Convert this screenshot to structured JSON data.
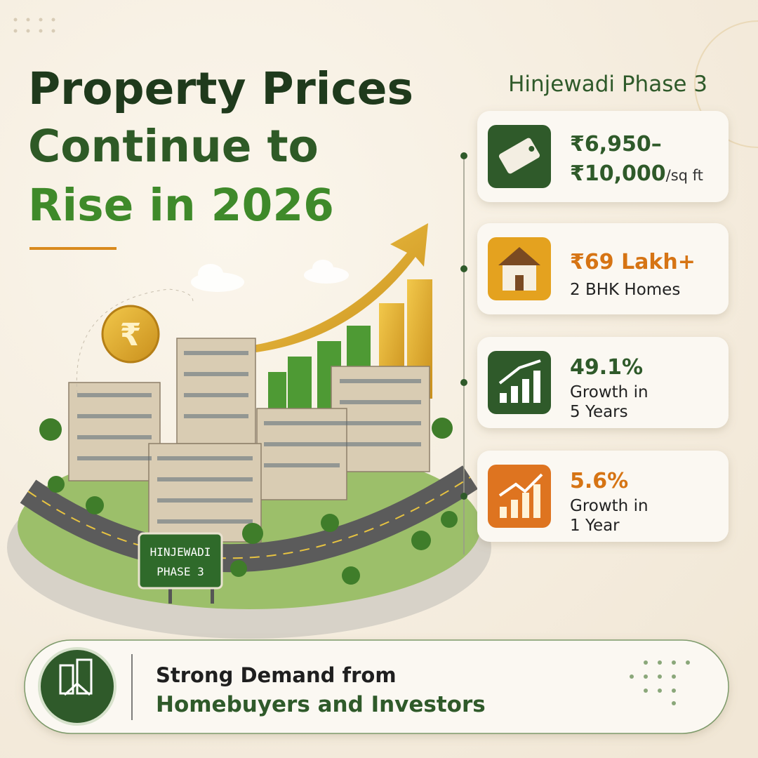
{
  "header": {
    "title_lines": [
      "Property Prices",
      "Continue to",
      "Rise in 2026"
    ],
    "location": "Hinjewadi Phase 3"
  },
  "illustration": {
    "coin_symbol": "₹",
    "sign_lines": [
      "HINJEWADI",
      "PHASE 3"
    ]
  },
  "cards": [
    {
      "lines": [
        "₹6,950–",
        "₹10,000"
      ],
      "unit": "/sq ft"
    },
    {
      "lines": [
        "₹69 Lakh+",
        "2 BHK Homes"
      ]
    },
    {
      "lines": [
        "49.1%",
        "Growth in",
        "5 Years"
      ]
    },
    {
      "lines": [
        "5.6%",
        "Growth in",
        "1 Year"
      ]
    }
  ],
  "footer": {
    "lines": [
      "Strong Demand from",
      "Homebuyers and Investors"
    ]
  }
}
